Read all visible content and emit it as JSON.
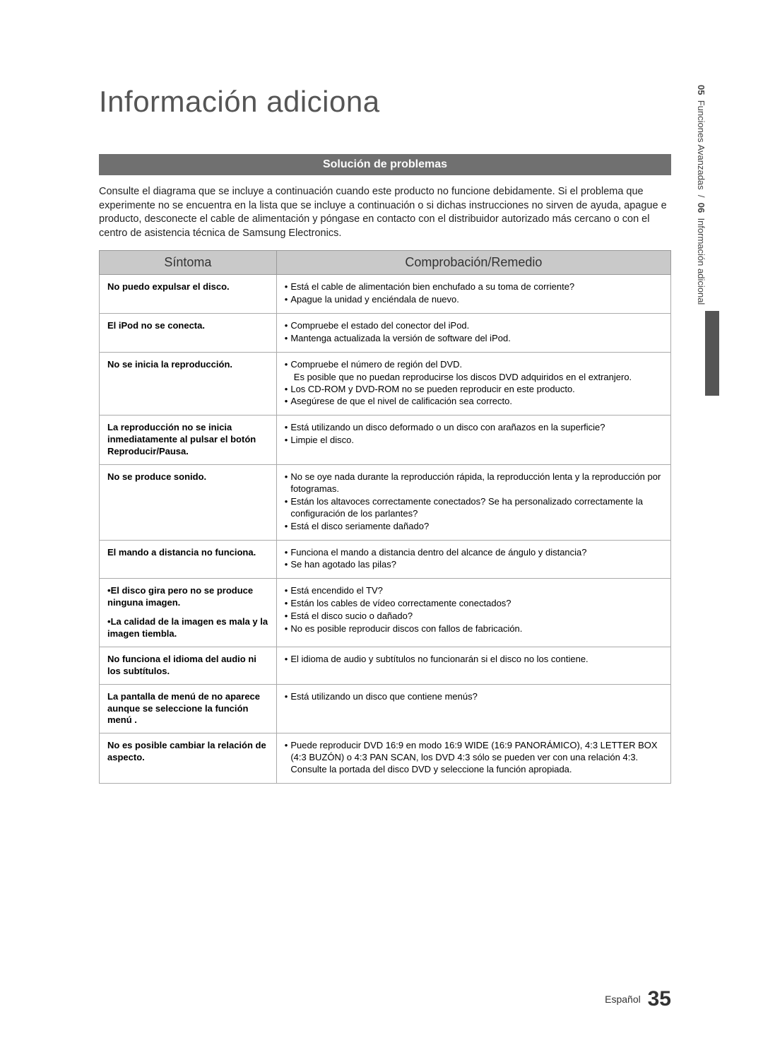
{
  "title": "Información adiciona",
  "section_header": "Solución de problemas",
  "intro": "Consulte el diagrama que se incluye a continuación cuando este producto no funcione debidamente. Si el problema que experimente no se encuentra en la lista que se incluye a continuación o si dichas instrucciones no sirven de ayuda, apague e producto, desconecte el cable de alimentación y póngase en contacto con el distribuidor autorizado más cercano o con el centro de asistencia técnica de Samsung Electronics.",
  "col_symptom": "Síntoma",
  "col_remedy": "Comprobación/Remedio",
  "rows": [
    {
      "symptom": "No puedo expulsar el disco.",
      "remedy": [
        "Está el cable de alimentación bien enchufado a su toma de corriente?",
        "Apague la unidad y enciéndala de nuevo."
      ]
    },
    {
      "symptom": "El iPod no se conecta.",
      "remedy": [
        "Compruebe el estado del conector del iPod.",
        "Mantenga actualizada la versión de software del iPod."
      ]
    },
    {
      "symptom": "No se inicia la reproducción.",
      "remedy": [
        "Compruebe el número de región del DVD.\nEs posible que no puedan reproducirse los discos DVD adquiridos en el extranjero.",
        "Los CD-ROM y DVD-ROM no se pueden reproducir en este producto.",
        "Asegúrese de que el nivel de calificación sea correcto."
      ]
    },
    {
      "symptom": "La reproducción no se inicia inmediatamente al pulsar el botón Reproducir/Pausa.",
      "remedy": [
        "Está utilizando un disco deformado o un disco con arañazos en la superficie?",
        "Limpie el disco."
      ]
    },
    {
      "symptom": "No se produce sonido.",
      "remedy": [
        "No se oye nada durante la reproducción rápida, la reproducción lenta y la reproducción por fotogramas.",
        "Están los altavoces correctamente conectados? Se ha personalizado correctamente la configuración de los parlantes?",
        "Está el disco seriamente dañado?"
      ]
    },
    {
      "symptom": "El mando a distancia no funciona.",
      "remedy": [
        "Funciona el mando a distancia dentro del alcance de ángulo y distancia?",
        "Se han agotado las pilas?"
      ]
    },
    {
      "symptom_bullets": [
        "El disco gira pero no se produce ninguna imagen.",
        "La calidad de la imagen es mala y la imagen tiembla."
      ],
      "remedy": [
        "Está encendido el TV?",
        "Están los cables de vídeo correctamente conectados?",
        "Está el disco sucio o dañado?",
        "No es posible reproducir discos con fallos de fabricación."
      ]
    },
    {
      "symptom": "No funciona el idioma del audio ni los subtítulos.",
      "remedy": [
        "El idioma de audio y subtítulos no funcionarán si el disco no los contiene."
      ]
    },
    {
      "symptom": "La pantalla de menú de no aparece aunque se seleccione la función menú .",
      "remedy": [
        "Está utilizando un disco que contiene menús?"
      ]
    },
    {
      "symptom": "No es posible cambiar la relación de aspecto.",
      "remedy": [
        "Puede reproducir DVD 16:9 en modo 16:9 WIDE (16:9 PANORÁMICO), 4:3 LETTER BOX (4:3 BUZÓN) o 4:3 PAN SCAN, los DVD 4:3 sólo se pueden ver con una relación 4:3. Consulte la portada del disco DVD y seleccione la función apropiada."
      ]
    }
  ],
  "sidebar": {
    "s1num": "05",
    "s1label": "Funciones Avanzadas",
    "sep": "/",
    "s2num": "06",
    "s2label": "Información adicional"
  },
  "footer_lang": "Español",
  "footer_page": "35"
}
